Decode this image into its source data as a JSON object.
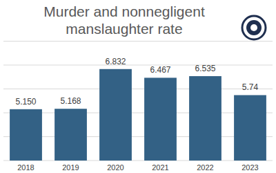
{
  "chart_data": {
    "type": "bar",
    "title": "Murder and nonnegligent manslaughter rate",
    "categories": [
      "2018",
      "2019",
      "2020",
      "2021",
      "2022",
      "2023"
    ],
    "values": [
      5.15,
      5.168,
      6.832,
      6.467,
      6.535,
      5.74
    ],
    "value_labels": [
      "5.150",
      "5.168",
      "6.832",
      "6.467",
      "6.535",
      "5.74"
    ],
    "color": "#336185",
    "ylim": [
      3,
      8
    ],
    "yticks": [
      3,
      4,
      5,
      6,
      7,
      8
    ],
    "grid": true,
    "data_labels": true,
    "tick_labels": "x"
  }
}
